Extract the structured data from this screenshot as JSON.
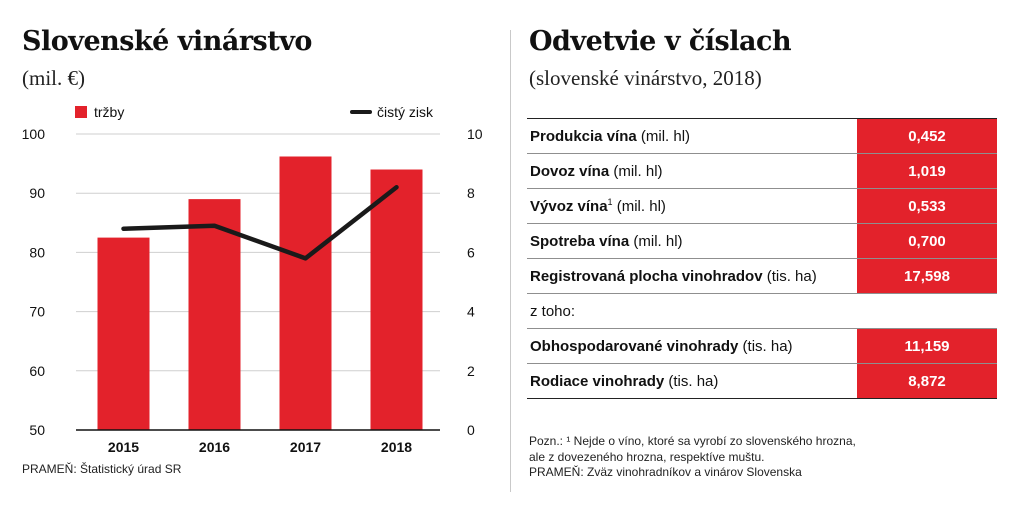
{
  "left": {
    "title": "Slovenské vinárstvo",
    "subtitle": "(mil. €)",
    "source": "PRAMEŇ: Štatistický úrad SR"
  },
  "right": {
    "title": "Odvetvie v číslach",
    "subtitle": "(slovenské vinárstvo, 2018)",
    "rows": [
      {
        "bold": "Produkcia vína",
        "sup": "",
        "unit": " (mil. hl)",
        "value": "0,452"
      },
      {
        "bold": "Dovoz vína",
        "sup": "",
        "unit": " (mil. hl)",
        "value": "1,019"
      },
      {
        "bold": "Vývoz vína",
        "sup": "1",
        "unit": " (mil. hl)",
        "value": "0,533"
      },
      {
        "bold": "Spotreba vína",
        "sup": "",
        "unit": " (mil. hl)",
        "value": "0,700"
      },
      {
        "bold": "Registrovaná plocha vinohradov",
        "sup": "",
        "unit": " (tis. ha)",
        "value": "17,598"
      }
    ],
    "subheading": "z toho:",
    "sub_rows": [
      {
        "bold": "Obhospodarované vinohrady",
        "unit": " (tis. ha)",
        "value": "11,159"
      },
      {
        "bold": "Rodiace vinohrady",
        "unit": " (tis. ha)",
        "value": "8,872"
      }
    ],
    "notes": [
      "Pozn.: ¹ Nejde o víno, ktoré sa vyrobí zo slovenského hrozna,",
      "ale z dovezeného hrozna, respektíve muštu.",
      "PRAMEŇ: Zväz vinohradníkov a vinárov Slovenska"
    ]
  },
  "colors": {
    "bar": "#e3222b",
    "line": "#1a1a1a",
    "grid": "#cfcfcf"
  },
  "chart_data": {
    "type": "bar",
    "title": "Slovenské vinárstvo",
    "ylabel": "mil. €",
    "categories": [
      "2015",
      "2016",
      "2017",
      "2018"
    ],
    "series": [
      {
        "name": "tržby",
        "type": "bar",
        "axis": "left",
        "values": [
          82.5,
          89,
          96.2,
          94
        ]
      },
      {
        "name": "čistý zisk",
        "type": "line",
        "axis": "right",
        "values": [
          6.8,
          6.9,
          5.8,
          8.2
        ]
      }
    ],
    "ylim": [
      50,
      100
    ],
    "y2lim": [
      0,
      10
    ],
    "yticks": [
      "100",
      "90",
      "80",
      "70",
      "60",
      "50"
    ],
    "y2ticks": [
      "10",
      "8",
      "6",
      "4",
      "2",
      "0"
    ],
    "legend": [
      "tržby",
      "čistý zisk"
    ]
  }
}
